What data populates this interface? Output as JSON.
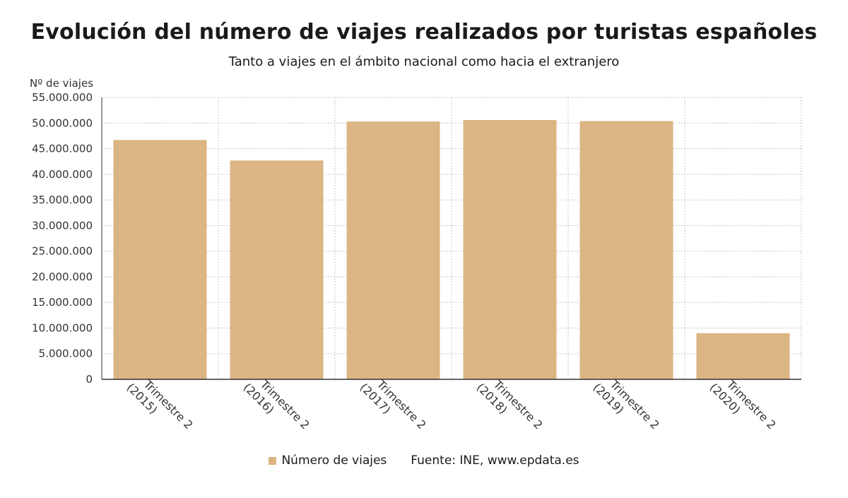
{
  "title": "Evolución del número de viajes realizados por turistas españoles",
  "subtitle": "Tanto a viajes en el ámbito nacional como hacia el extranjero",
  "source": "Fuente: INE, www.epdata.es",
  "colors": {
    "bar": "#dbb583",
    "grid": "#c8c8c8",
    "axis": "#333333"
  },
  "chart_data": {
    "type": "bar",
    "categories": [
      [
        "Trimestre 2",
        "(2015)"
      ],
      [
        "Trimestre 2",
        "(2016)"
      ],
      [
        "Trimestre 2",
        "(2017)"
      ],
      [
        "Trimestre 2",
        "(2018)"
      ],
      [
        "Trimestre 2",
        "(2019)"
      ],
      [
        "Trimestre 2",
        "(2020)"
      ]
    ],
    "series": [
      {
        "name": "Número de viajes",
        "values": [
          46700000,
          42700000,
          50300000,
          50600000,
          50400000,
          9000000
        ]
      }
    ],
    "ylabel": "Nº de viajes",
    "ylim": [
      0,
      55000000
    ],
    "yticks": [
      0,
      5000000,
      10000000,
      15000000,
      20000000,
      25000000,
      30000000,
      35000000,
      40000000,
      45000000,
      50000000,
      55000000
    ],
    "ytick_labels": [
      "0",
      "5.000.000",
      "10.000.000",
      "15.000.000",
      "20.000.000",
      "25.000.000",
      "30.000.000",
      "35.000.000",
      "40.000.000",
      "45.000.000",
      "50.000.000",
      "55.000.000"
    ],
    "grid": true,
    "legend": "bottom"
  }
}
